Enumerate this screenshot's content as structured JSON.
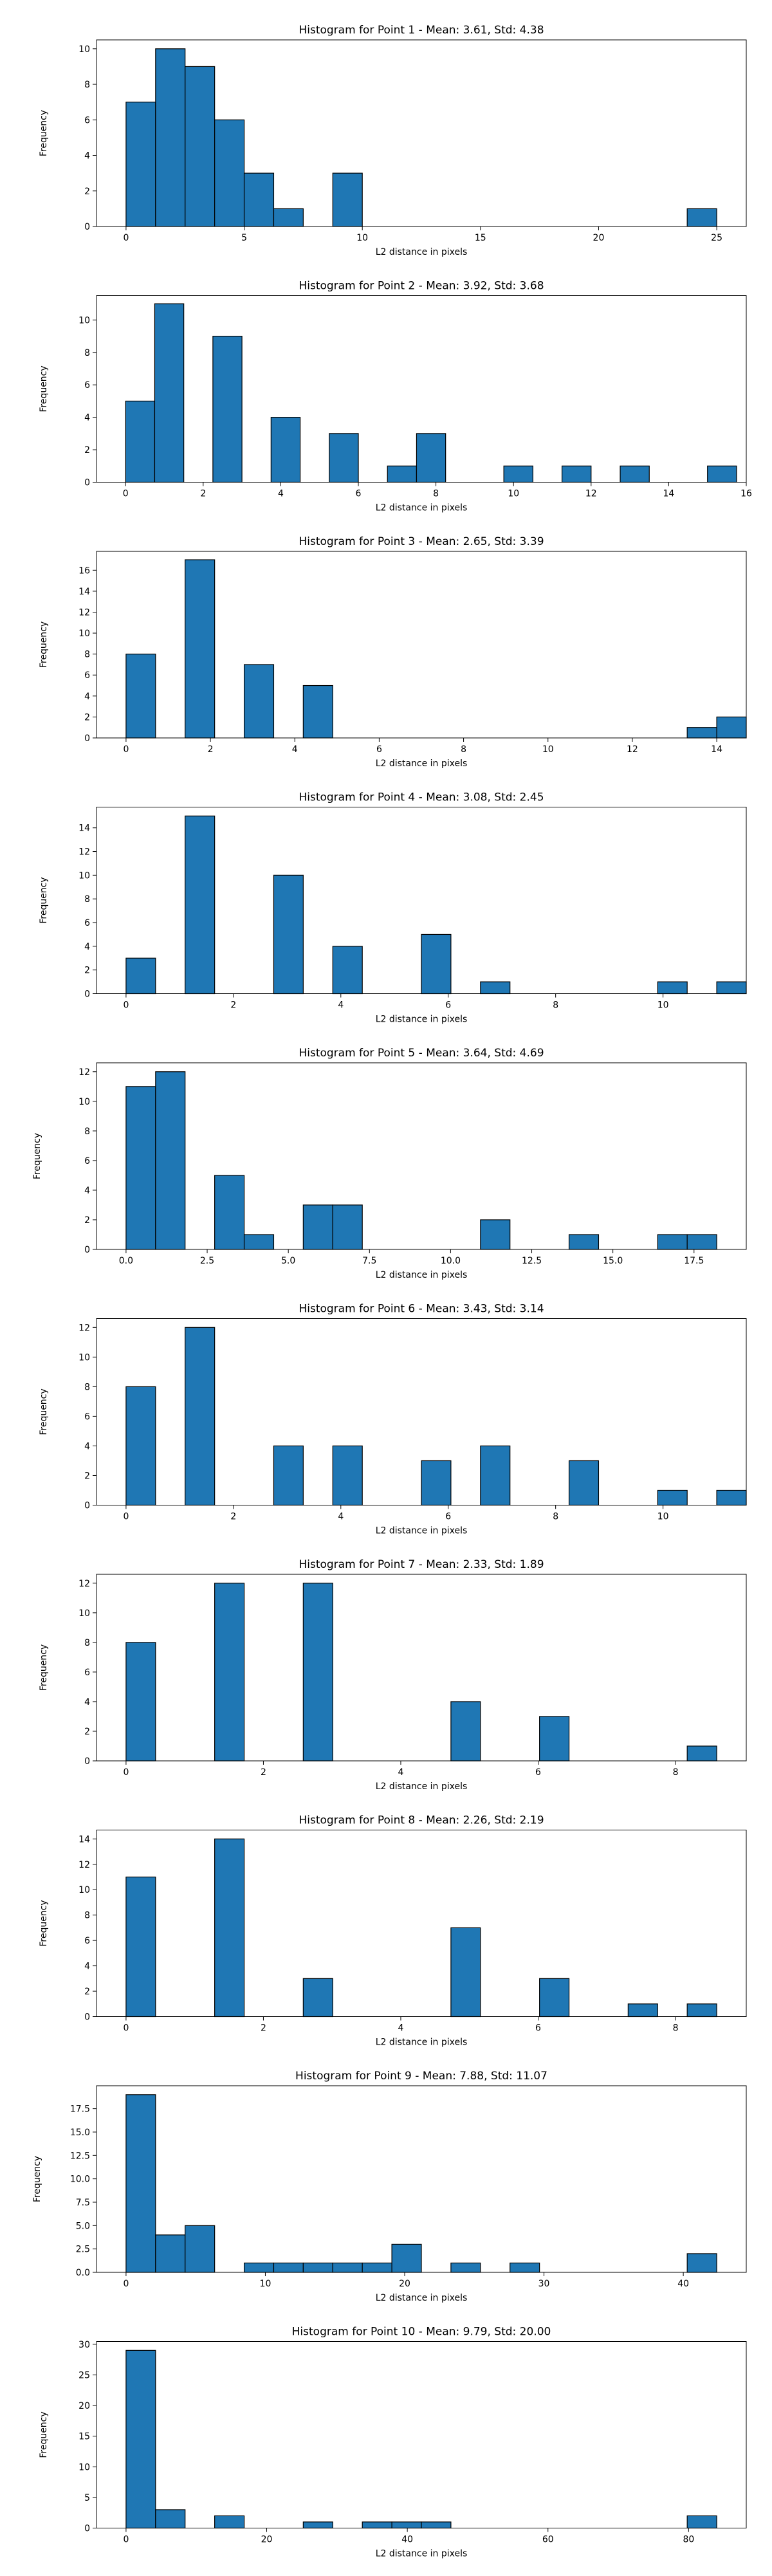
{
  "chart_data": [
    {
      "type": "bar",
      "title": "Histogram for Point 1 - Mean: 3.61, Std: 4.38",
      "xlabel": "L2 distance in pixels",
      "ylabel": "Frequency",
      "bins": {
        "start": 0,
        "width": 1.25,
        "values": [
          7,
          10,
          9,
          6,
          3,
          1,
          0,
          3,
          0,
          0,
          0,
          0,
          0,
          0,
          0,
          0,
          0,
          0,
          0,
          1
        ]
      },
      "xlim": [
        -1.25,
        26.25
      ],
      "ylim": [
        0,
        10.5
      ],
      "xticks": [
        0,
        5,
        10,
        15,
        20,
        25
      ],
      "xtick_labels": [
        "0",
        "5",
        "10",
        "15",
        "20",
        "25"
      ],
      "yticks": [
        0,
        2,
        4,
        6,
        8,
        10
      ],
      "ytick_labels": [
        "0",
        "2",
        "4",
        "6",
        "8",
        "10"
      ],
      "color": "#1f77b4"
    },
    {
      "type": "bar",
      "title": "Histogram for Point 2 - Mean: 3.92, Std: 3.68",
      "xlabel": "L2 distance in pixels",
      "ylabel": "Frequency",
      "bins": {
        "start": 0,
        "width": 0.75,
        "values": [
          5,
          11,
          0,
          9,
          0,
          4,
          0,
          3,
          0,
          1,
          3,
          0,
          0,
          1,
          0,
          1,
          0,
          1,
          0,
          0,
          1
        ]
      },
      "xlim": [
        -0.75,
        16.0
      ],
      "ylim": [
        0,
        11.5
      ],
      "xticks": [
        0,
        2,
        4,
        6,
        8,
        10,
        12,
        14,
        16
      ],
      "xtick_labels": [
        "0",
        "2",
        "4",
        "6",
        "8",
        "10",
        "12",
        "14",
        "16"
      ],
      "yticks": [
        0,
        2,
        4,
        6,
        8,
        10
      ],
      "ytick_labels": [
        "0",
        "2",
        "4",
        "6",
        "8",
        "10"
      ],
      "color": "#1f77b4"
    },
    {
      "type": "bar",
      "title": "Histogram for Point 3 - Mean: 2.65, Std: 3.39",
      "xlabel": "L2 distance in pixels",
      "ylabel": "Frequency",
      "bins": {
        "start": 0,
        "width": 0.7,
        "values": [
          8,
          0,
          17,
          0,
          7,
          0,
          5,
          0,
          0,
          0,
          0,
          0,
          0,
          0,
          0,
          0,
          0,
          0,
          0,
          1,
          2
        ]
      },
      "xlim": [
        -0.7,
        14.7
      ],
      "ylim": [
        0,
        17.8
      ],
      "xticks": [
        0,
        2,
        4,
        6,
        8,
        10,
        12,
        14
      ],
      "xtick_labels": [
        "0",
        "2",
        "4",
        "6",
        "8",
        "10",
        "12",
        "14"
      ],
      "yticks": [
        0,
        2,
        4,
        6,
        8,
        10,
        12,
        14,
        16
      ],
      "ytick_labels": [
        "0",
        "2",
        "4",
        "6",
        "8",
        "10",
        "12",
        "14",
        "16"
      ],
      "color": "#1f77b4"
    },
    {
      "type": "bar",
      "title": "Histogram for Point 4 - Mean: 3.08, Std: 2.45",
      "xlabel": "L2 distance in pixels",
      "ylabel": "Frequency",
      "bins": {
        "start": 0,
        "width": 0.55,
        "values": [
          3,
          0,
          15,
          0,
          0,
          10,
          0,
          4,
          0,
          0,
          5,
          0,
          1,
          0,
          0,
          0,
          0,
          0,
          1,
          0,
          1
        ]
      },
      "xlim": [
        -0.55,
        11.55
      ],
      "ylim": [
        0,
        15.75
      ],
      "xticks": [
        0,
        2,
        4,
        6,
        8,
        10
      ],
      "xtick_labels": [
        "0",
        "2",
        "4",
        "6",
        "8",
        "10"
      ],
      "yticks": [
        0,
        2,
        4,
        6,
        8,
        10,
        12,
        14
      ],
      "ytick_labels": [
        "0",
        "2",
        "4",
        "6",
        "8",
        "10",
        "12",
        "14"
      ],
      "color": "#1f77b4"
    },
    {
      "type": "bar",
      "title": "Histogram for Point 5 - Mean: 3.64, Std: 4.69",
      "xlabel": "L2 distance in pixels",
      "ylabel": "Frequency",
      "bins": {
        "start": 0,
        "width": 0.91,
        "values": [
          11,
          12,
          0,
          5,
          1,
          0,
          3,
          3,
          0,
          0,
          0,
          0,
          2,
          0,
          0,
          1,
          0,
          0,
          1,
          1
        ]
      },
      "xlim": [
        -0.91,
        19.11
      ],
      "ylim": [
        0,
        12.6
      ],
      "xticks": [
        0,
        2.5,
        5,
        7.5,
        10,
        12.5,
        15,
        17.5
      ],
      "xtick_labels": [
        "0.0",
        "2.5",
        "5.0",
        "7.5",
        "10.0",
        "12.5",
        "15.0",
        "17.5"
      ],
      "yticks": [
        0,
        2,
        4,
        6,
        8,
        10,
        12
      ],
      "ytick_labels": [
        "0",
        "2",
        "4",
        "6",
        "8",
        "10",
        "12"
      ],
      "color": "#1f77b4"
    },
    {
      "type": "bar",
      "title": "Histogram for Point 6 - Mean: 3.43, Std: 3.14",
      "xlabel": "L2 distance in pixels",
      "ylabel": "Frequency",
      "bins": {
        "start": 0,
        "width": 0.55,
        "values": [
          8,
          0,
          12,
          0,
          0,
          4,
          0,
          4,
          0,
          0,
          3,
          0,
          4,
          0,
          0,
          3,
          0,
          0,
          1,
          0,
          1
        ]
      },
      "xlim": [
        -0.55,
        11.55
      ],
      "ylim": [
        0,
        12.6
      ],
      "xticks": [
        0,
        2,
        4,
        6,
        8,
        10
      ],
      "xtick_labels": [
        "0",
        "2",
        "4",
        "6",
        "8",
        "10"
      ],
      "yticks": [
        0,
        2,
        4,
        6,
        8,
        10,
        12
      ],
      "ytick_labels": [
        "0",
        "2",
        "4",
        "6",
        "8",
        "10",
        "12"
      ],
      "color": "#1f77b4"
    },
    {
      "type": "bar",
      "title": "Histogram for Point 7 - Mean: 2.33, Std: 1.89",
      "xlabel": "L2 distance in pixels",
      "ylabel": "Frequency",
      "bins": {
        "start": 0,
        "width": 0.43,
        "values": [
          8,
          0,
          0,
          12,
          0,
          0,
          12,
          0,
          0,
          0,
          0,
          4,
          0,
          0,
          3,
          0,
          0,
          0,
          0,
          1
        ]
      },
      "xlim": [
        -0.43,
        9.03
      ],
      "ylim": [
        0,
        12.6
      ],
      "xticks": [
        0,
        2,
        4,
        6,
        8
      ],
      "xtick_labels": [
        "0",
        "2",
        "4",
        "6",
        "8"
      ],
      "yticks": [
        0,
        2,
        4,
        6,
        8,
        10,
        12
      ],
      "ytick_labels": [
        "0",
        "2",
        "4",
        "6",
        "8",
        "10",
        "12"
      ],
      "color": "#1f77b4"
    },
    {
      "type": "bar",
      "title": "Histogram for Point 8 - Mean: 2.26, Std: 2.19",
      "xlabel": "L2 distance in pixels",
      "ylabel": "Frequency",
      "bins": {
        "start": 0,
        "width": 0.43,
        "values": [
          11,
          0,
          0,
          14,
          0,
          0,
          3,
          0,
          0,
          0,
          0,
          7,
          0,
          0,
          3,
          0,
          0,
          1,
          0,
          1
        ]
      },
      "xlim": [
        -0.43,
        9.03
      ],
      "ylim": [
        0,
        14.7
      ],
      "xticks": [
        0,
        2,
        4,
        6,
        8
      ],
      "xtick_labels": [
        "0",
        "2",
        "4",
        "6",
        "8"
      ],
      "yticks": [
        0,
        2,
        4,
        6,
        8,
        10,
        12,
        14
      ],
      "ytick_labels": [
        "0",
        "2",
        "4",
        "6",
        "8",
        "10",
        "12",
        "14"
      ],
      "color": "#1f77b4"
    },
    {
      "type": "bar",
      "title": "Histogram for Point 9 - Mean: 7.88, Std: 11.07",
      "xlabel": "L2 distance in pixels",
      "ylabel": "Frequency",
      "bins": {
        "start": 0,
        "width": 2.12,
        "values": [
          19,
          4,
          5,
          0,
          1,
          1,
          1,
          1,
          1,
          3,
          0,
          1,
          0,
          1,
          0,
          0,
          0,
          0,
          0,
          2
        ]
      },
      "xlim": [
        -2.12,
        44.52
      ],
      "ylim": [
        0,
        19.95
      ],
      "xticks": [
        0,
        10,
        20,
        30,
        40
      ],
      "xtick_labels": [
        "0",
        "10",
        "20",
        "30",
        "40"
      ],
      "yticks": [
        0,
        2.5,
        5,
        7.5,
        10,
        12.5,
        15,
        17.5
      ],
      "ytick_labels": [
        "0.0",
        "2.5",
        "5.0",
        "7.5",
        "10.0",
        "12.5",
        "15.0",
        "17.5"
      ],
      "color": "#1f77b4"
    },
    {
      "type": "bar",
      "title": "Histogram for Point 10 - Mean: 9.79, Std: 20.00",
      "xlabel": "L2 distance in pixels",
      "ylabel": "Frequency",
      "bins": {
        "start": 0,
        "width": 4.2,
        "values": [
          29,
          3,
          0,
          2,
          0,
          0,
          1,
          0,
          1,
          1,
          1,
          0,
          0,
          0,
          0,
          0,
          0,
          0,
          0,
          2
        ]
      },
      "xlim": [
        -4.2,
        88.2
      ],
      "ylim": [
        0,
        30.45
      ],
      "xticks": [
        0,
        20,
        40,
        60,
        80
      ],
      "xtick_labels": [
        "0",
        "20",
        "40",
        "60",
        "80"
      ],
      "yticks": [
        0,
        5,
        10,
        15,
        20,
        25,
        30
      ],
      "ytick_labels": [
        "0",
        "5",
        "10",
        "15",
        "20",
        "25",
        "30"
      ],
      "color": "#1f77b4"
    }
  ]
}
